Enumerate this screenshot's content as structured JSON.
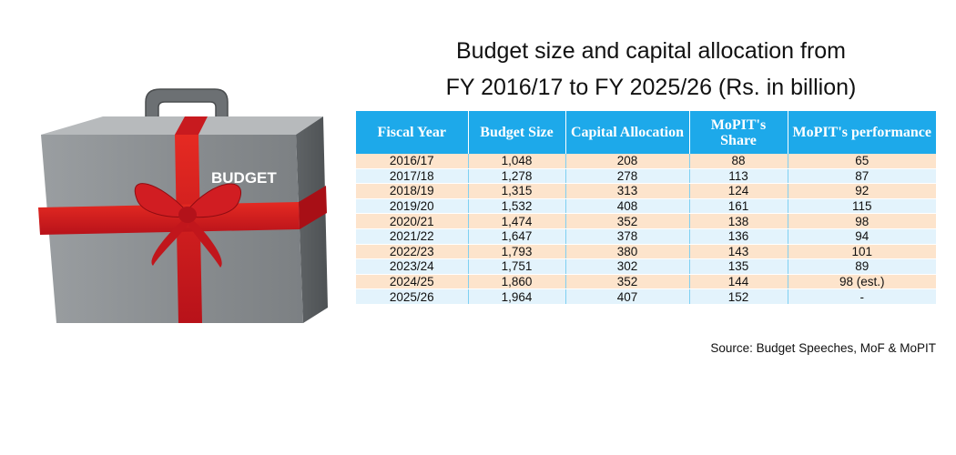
{
  "image": {
    "briefcase_label": "BUDGET"
  },
  "chart_data": {
    "type": "table",
    "title": "Budget size and capital allocation from",
    "title_line2": "FY 2016/17 to FY 2025/26 (Rs. in billion)",
    "columns": [
      "Fiscal Year",
      "Budget Size",
      "Capital Allocation",
      "MoPIT's Share",
      "MoPIT's performance"
    ],
    "rows": [
      [
        "2016/17",
        "1,048",
        "208",
        "88",
        "65"
      ],
      [
        "2017/18",
        "1,278",
        "278",
        "113",
        "87"
      ],
      [
        "2018/19",
        "1,315",
        "313",
        "124",
        "92"
      ],
      [
        "2019/20",
        "1,532",
        "408",
        "161",
        "115"
      ],
      [
        "2020/21",
        "1,474",
        "352",
        "138",
        "98"
      ],
      [
        "2021/22",
        "1,647",
        "378",
        "136",
        "94"
      ],
      [
        "2022/23",
        "1,793",
        "380",
        "143",
        "101"
      ],
      [
        "2023/24",
        "1,751",
        "302",
        "135",
        "89"
      ],
      [
        "2024/25",
        "1,860",
        "352",
        "144",
        "98 (est.)"
      ],
      [
        "2025/26",
        "1,964",
        "407",
        "152",
        "-"
      ]
    ],
    "source": "Source: Budget Speeches, MoF & MoPIT"
  },
  "colors": {
    "header": "#1da9ea",
    "row_odd": "#fde4cc",
    "row_even": "#e3f3fc",
    "ribbon": "#d8191e",
    "case": "#8f9396"
  }
}
